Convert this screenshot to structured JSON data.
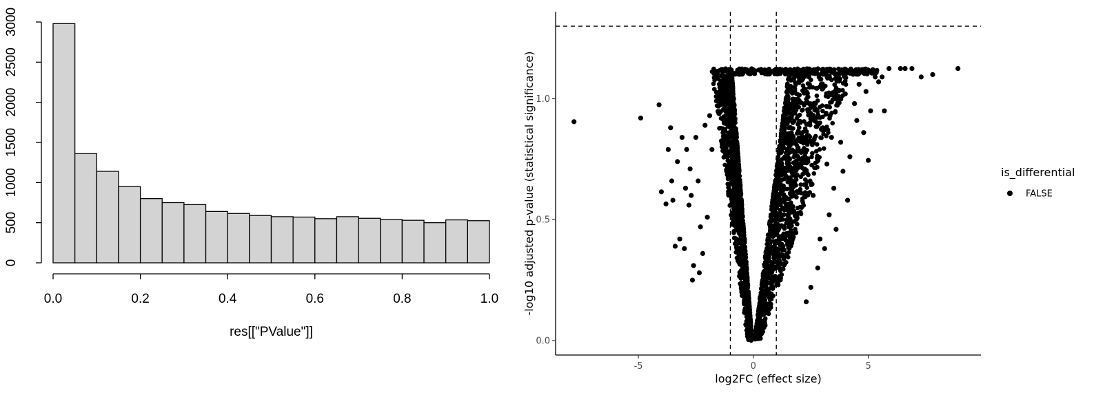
{
  "chart_data": [
    {
      "type": "bar",
      "subtype": "histogram",
      "title": "",
      "xlabel": "res[[\"PValue\"]]",
      "ylabel": "",
      "bin_width": 0.05,
      "bins_start": [
        0.0,
        0.05,
        0.1,
        0.15,
        0.2,
        0.25,
        0.3,
        0.35,
        0.4,
        0.45,
        0.5,
        0.55,
        0.6,
        0.65,
        0.7,
        0.75,
        0.8,
        0.85,
        0.9,
        0.95
      ],
      "values": [
        2980,
        1360,
        1140,
        950,
        800,
        750,
        725,
        640,
        615,
        590,
        575,
        570,
        550,
        575,
        555,
        540,
        530,
        500,
        535,
        525
      ],
      "xlim": [
        0.0,
        1.0
      ],
      "ylim": [
        0,
        3000
      ],
      "x_ticks": [
        "0.0",
        "0.2",
        "0.4",
        "0.6",
        "0.8",
        "1.0"
      ],
      "y_ticks": [
        "0",
        "500",
        "1000",
        "1500",
        "2000",
        "2500",
        "3000"
      ],
      "bar_fill": "#d3d3d3",
      "bar_stroke": "#000000",
      "grid": false
    },
    {
      "type": "scatter",
      "subtype": "volcano",
      "title": "",
      "xlabel": "log2FC (effect size)",
      "ylabel": "-log10 adjusted p-value (statistical significance)",
      "xlim": [
        -8.6,
        9.9
      ],
      "ylim": [
        -0.06,
        1.36
      ],
      "x_ticks": [
        "-5",
        "0",
        "5"
      ],
      "y_ticks": [
        "0.0",
        "0.5",
        "1.0"
      ],
      "reference_lines": {
        "vertical": [
          -1,
          1
        ],
        "horizontal": [
          1.3
        ]
      },
      "legend": {
        "title": "is_differential",
        "position": "right",
        "entries": [
          {
            "label": "FALSE",
            "color": "#000000"
          }
        ]
      },
      "point_color": "#000000",
      "grid": false,
      "series": [
        {
          "name": "FALSE",
          "points": [
            [
              -7.8,
              0.905
            ],
            [
              -4.9,
              0.92
            ],
            [
              -4.1,
              0.975
            ],
            [
              -3.6,
              0.88
            ],
            [
              -3.1,
              0.84
            ],
            [
              -4.0,
              0.615
            ],
            [
              -3.8,
              0.565
            ],
            [
              -3.5,
              0.58
            ],
            [
              -2.9,
              0.79
            ],
            [
              -3.2,
              0.42
            ],
            [
              -3.4,
              0.39
            ],
            [
              -2.7,
              0.6
            ],
            [
              -2.5,
              0.84
            ],
            [
              -2.3,
              0.47
            ],
            [
              -2.2,
              0.36
            ],
            [
              -2.6,
              0.31
            ],
            [
              -3.0,
              0.38
            ],
            [
              -2.8,
              0.56
            ],
            [
              -2.4,
              0.66
            ],
            [
              -2.1,
              0.89
            ],
            [
              -3.3,
              0.74
            ],
            [
              -3.55,
              0.66
            ],
            [
              -2.95,
              0.63
            ],
            [
              -2.75,
              0.71
            ],
            [
              -1.9,
              0.93
            ],
            [
              -2.0,
              0.51
            ],
            [
              -1.8,
              0.79
            ],
            [
              -2.35,
              0.28
            ],
            [
              -3.7,
              0.79
            ],
            [
              -2.65,
              0.25
            ],
            [
              5.9,
              1.125
            ],
            [
              6.4,
              1.125
            ],
            [
              6.6,
              1.125
            ],
            [
              6.9,
              1.125
            ],
            [
              7.3,
              1.09
            ],
            [
              7.8,
              1.1
            ],
            [
              8.9,
              1.125
            ],
            [
              5.3,
              1.09
            ],
            [
              5.6,
              1.09
            ],
            [
              5.1,
              0.95
            ],
            [
              5.7,
              0.95
            ],
            [
              4.8,
              0.86
            ],
            [
              4.2,
              0.76
            ],
            [
              5.0,
              0.745
            ],
            [
              4.1,
              0.58
            ],
            [
              3.6,
              0.46
            ],
            [
              4.5,
              0.91
            ],
            [
              3.9,
              0.7
            ],
            [
              3.3,
              0.52
            ],
            [
              3.5,
              0.63
            ],
            [
              3.8,
              0.82
            ],
            [
              4.4,
              0.98
            ],
            [
              2.9,
              0.42
            ],
            [
              3.1,
              0.38
            ],
            [
              2.8,
              0.3
            ],
            [
              2.5,
              0.22
            ],
            [
              2.3,
              0.16
            ],
            [
              3.4,
              0.84
            ],
            [
              2.6,
              0.6
            ],
            [
              3.2,
              0.73
            ],
            [
              4.9,
              1.03
            ],
            [
              4.6,
              1.06
            ],
            [
              5.2,
              1.12
            ],
            [
              4.0,
              1.02
            ],
            [
              3.7,
              1.09
            ],
            [
              2.7,
              0.98
            ],
            [
              3.0,
              1.04
            ],
            [
              5.45,
              1.07
            ]
          ]
        }
      ]
    }
  ]
}
